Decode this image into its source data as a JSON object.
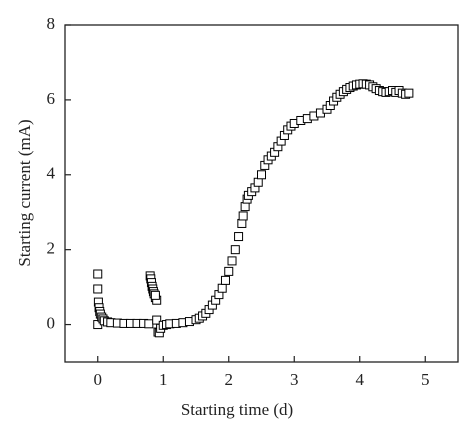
{
  "chart_data": {
    "type": "scatter",
    "x_label": "Starting time (d)",
    "y_label": "Starting current (mA)",
    "xlim": [
      -0.5,
      5.5
    ],
    "ylim": [
      -1,
      8
    ],
    "xticks": [
      0,
      1,
      2,
      3,
      4,
      5
    ],
    "yticks": [
      0,
      2,
      4,
      6,
      8
    ],
    "color": "#000000",
    "x": [
      0,
      0,
      0,
      0.01,
      0.02,
      0.03,
      0.04,
      0.06,
      0.08,
      0.1,
      0.15,
      0.2,
      0.3,
      0.4,
      0.5,
      0.6,
      0.7,
      0.78,
      0.8,
      0.81,
      0.82,
      0.83,
      0.84,
      0.85,
      0.86,
      0.88,
      0.9,
      0.88,
      0.9,
      0.92,
      0.94,
      0.96,
      1.0,
      1.05,
      1.1,
      1.2,
      1.3,
      1.4,
      1.5,
      1.55,
      1.6,
      1.65,
      1.7,
      1.75,
      1.8,
      1.85,
      1.9,
      1.95,
      2.0,
      2.05,
      2.1,
      2.15,
      2.2,
      2.22,
      2.25,
      2.28,
      2.3,
      2.35,
      2.4,
      2.45,
      2.5,
      2.55,
      2.6,
      2.65,
      2.7,
      2.75,
      2.8,
      2.85,
      2.9,
      2.95,
      3.0,
      3.1,
      3.2,
      3.3,
      3.4,
      3.5,
      3.55,
      3.6,
      3.65,
      3.7,
      3.75,
      3.8,
      3.85,
      3.9,
      3.95,
      4.0,
      4.05,
      4.1,
      4.15,
      4.2,
      4.25,
      4.3,
      4.35,
      4.4,
      4.45,
      4.5,
      4.55,
      4.6,
      4.65,
      4.7,
      4.75
    ],
    "values": [
      1.35,
      0.95,
      0,
      0.6,
      0.45,
      0.35,
      0.28,
      0.2,
      0.15,
      0.1,
      0.07,
      0.05,
      0.04,
      0.03,
      0.03,
      0.03,
      0.03,
      0.02,
      1.3,
      1.22,
      1.12,
      1.02,
      0.95,
      0.88,
      0.82,
      0.72,
      0.65,
      0.78,
      0.12,
      -0.2,
      -0.22,
      -0.1,
      -0.02,
      0,
      0.02,
      0.03,
      0.05,
      0.08,
      0.13,
      0.17,
      0.23,
      0.3,
      0.4,
      0.52,
      0.65,
      0.8,
      0.97,
      1.18,
      1.42,
      1.7,
      2.0,
      2.35,
      2.7,
      2.9,
      3.15,
      3.35,
      3.45,
      3.55,
      3.65,
      3.8,
      4.0,
      4.25,
      4.4,
      4.5,
      4.6,
      4.75,
      4.9,
      5.05,
      5.2,
      5.3,
      5.37,
      5.45,
      5.5,
      5.57,
      5.65,
      5.75,
      5.85,
      5.97,
      6.07,
      6.15,
      6.22,
      6.28,
      6.33,
      6.37,
      6.4,
      6.42,
      6.43,
      6.42,
      6.4,
      6.35,
      6.3,
      6.25,
      6.22,
      6.2,
      6.22,
      6.25,
      6.2,
      6.25,
      6.18,
      6.15,
      6.18
    ]
  }
}
